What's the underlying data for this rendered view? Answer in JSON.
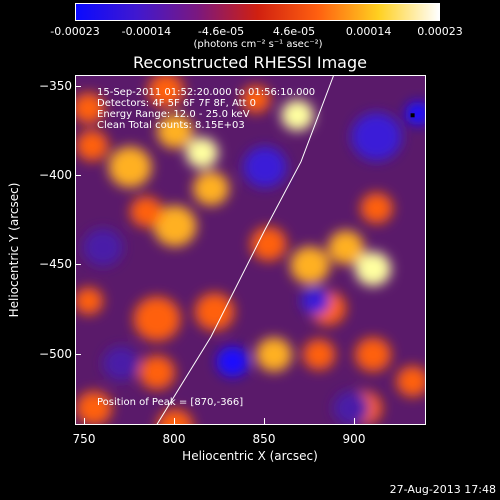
{
  "chart_data": {
    "type": "heatmap",
    "title": "Reconstructed RHESSI Image",
    "xlabel": "Heliocentric X (arcsec)",
    "ylabel": "Heliocentric Y (arcsec)",
    "xlim": [
      745,
      940
    ],
    "ylim": [
      -540,
      -344
    ],
    "xticks": [
      750,
      800,
      850,
      900
    ],
    "yticks": [
      -350,
      -400,
      -450,
      -500
    ],
    "colorbar": {
      "ticks": [
        "-0.00023",
        "-0.00014",
        "-4.6e-05",
        "4.6e-05",
        "0.00014",
        "0.00023"
      ],
      "tick_values": [
        -0.00023,
        -0.00014,
        -4.6e-05,
        4.6e-05,
        0.00014,
        0.00023
      ],
      "units": "(photons cm⁻² s⁻¹ asec⁻²)",
      "colormap": [
        "#0a0aff",
        "#4018d0",
        "#7a1880",
        "#d02010",
        "#ff6010",
        "#ffd020",
        "#ffffff"
      ]
    },
    "annotations": [
      "15-Sep-2011 01:52:20.000 to 01:56:10.000",
      "Detectors: 4F 5F 6F 7F 8F, Att 0",
      "Energy Range: 12.0 - 25.0 keV",
      "Clean     Total counts: 8.15E+03"
    ],
    "peak_text": "Position of Peak = [870,-366]",
    "peak": [
      870,
      -366
    ],
    "limb_curve": [
      [
        787,
        -544
      ],
      [
        820,
        -490
      ],
      [
        850,
        -430
      ],
      [
        870,
        -392
      ],
      [
        888,
        -344
      ]
    ],
    "blobs": [
      {
        "x": 752,
        "y": -362,
        "v": 0.7,
        "s": 9
      },
      {
        "x": 754,
        "y": -383,
        "v": 0.6,
        "s": 9
      },
      {
        "x": 775,
        "y": -395,
        "v": 0.75,
        "s": 12
      },
      {
        "x": 795,
        "y": -352,
        "v": 0.55,
        "s": 10
      },
      {
        "x": 800,
        "y": -375,
        "v": 0.85,
        "s": 10
      },
      {
        "x": 815,
        "y": -387,
        "v": 1.0,
        "s": 9
      },
      {
        "x": 820,
        "y": -407,
        "v": 0.8,
        "s": 10
      },
      {
        "x": 800,
        "y": -428,
        "v": 0.75,
        "s": 12
      },
      {
        "x": 784,
        "y": -420,
        "v": 0.6,
        "s": 9
      },
      {
        "x": 845,
        "y": -357,
        "v": 0.65,
        "s": 8
      },
      {
        "x": 868,
        "y": -366,
        "v": 1.0,
        "s": 9
      },
      {
        "x": 822,
        "y": -476,
        "v": 0.65,
        "s": 11
      },
      {
        "x": 790,
        "y": -480,
        "v": 0.7,
        "s": 13
      },
      {
        "x": 790,
        "y": -510,
        "v": 0.6,
        "s": 10
      },
      {
        "x": 752,
        "y": -470,
        "v": 0.6,
        "s": 8
      },
      {
        "x": 755,
        "y": -530,
        "v": 0.5,
        "s": 10
      },
      {
        "x": 852,
        "y": -438,
        "v": 0.7,
        "s": 10
      },
      {
        "x": 875,
        "y": -450,
        "v": 0.8,
        "s": 11
      },
      {
        "x": 895,
        "y": -440,
        "v": 0.85,
        "s": 10
      },
      {
        "x": 910,
        "y": -452,
        "v": 1.0,
        "s": 10
      },
      {
        "x": 885,
        "y": -474,
        "v": 0.7,
        "s": 10
      },
      {
        "x": 912,
        "y": -418,
        "v": 0.7,
        "s": 9
      },
      {
        "x": 855,
        "y": -500,
        "v": 0.8,
        "s": 10
      },
      {
        "x": 880,
        "y": -500,
        "v": 0.7,
        "s": 9
      },
      {
        "x": 910,
        "y": -500,
        "v": 0.6,
        "s": 10
      },
      {
        "x": 905,
        "y": -530,
        "v": 0.5,
        "s": 10
      },
      {
        "x": 932,
        "y": -515,
        "v": 0.7,
        "s": 9
      },
      {
        "x": 800,
        "y": -540,
        "v": 0.55,
        "s": 10
      },
      {
        "x": 832,
        "y": -504,
        "v": -0.9,
        "s": 9
      },
      {
        "x": 878,
        "y": -470,
        "v": -0.5,
        "s": 8
      },
      {
        "x": 912,
        "y": -378,
        "v": -0.55,
        "s": 14
      },
      {
        "x": 935,
        "y": -365,
        "v": -0.9,
        "s": 7
      },
      {
        "x": 898,
        "y": -530,
        "v": -0.4,
        "s": 10
      },
      {
        "x": 850,
        "y": -395,
        "v": -0.5,
        "s": 12
      },
      {
        "x": 760,
        "y": -440,
        "v": -0.45,
        "s": 11
      },
      {
        "x": 770,
        "y": -505,
        "v": -0.35,
        "s": 10
      }
    ]
  },
  "footer_date": "27-Aug-2013 17:48"
}
